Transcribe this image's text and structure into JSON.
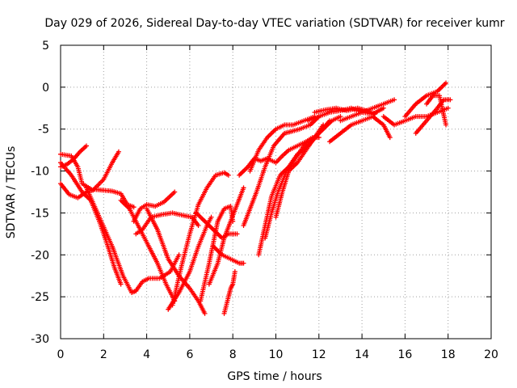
{
  "chart_data": {
    "type": "scatter",
    "title": "Day 029 of 2026, Sidereal Day-to-day VTEC variation (SDTVAR) for receiver kumr",
    "xlabel": "GPS time / hours",
    "ylabel": "SDTVAR / TECUs",
    "xlim": [
      0,
      20
    ],
    "ylim": [
      -30,
      5
    ],
    "xticks": [
      0,
      2,
      4,
      6,
      8,
      10,
      12,
      14,
      16,
      18,
      20
    ],
    "yticks": [
      -30,
      -25,
      -20,
      -15,
      -10,
      -5,
      0,
      5
    ],
    "grid": true,
    "marker": "+",
    "color": "#ff0000",
    "series": [
      {
        "name": "s1",
        "x": [
          0.0,
          0.3,
          0.6,
          0.9,
          1.2
        ],
        "y": [
          -9.5,
          -9.2,
          -8.6,
          -7.7,
          -7.0
        ]
      },
      {
        "name": "s2",
        "x": [
          0.0,
          0.5,
          0.8,
          1.0,
          1.5,
          2.0,
          2.4,
          2.7
        ],
        "y": [
          -8.0,
          -8.2,
          -9.5,
          -11.5,
          -12.3,
          -11.0,
          -9.0,
          -7.7
        ]
      },
      {
        "name": "s3",
        "x": [
          0.0,
          0.5,
          1.0,
          1.4,
          1.8,
          2.2,
          2.5,
          2.8
        ],
        "y": [
          -9.0,
          -10.5,
          -12.5,
          -13.5,
          -16.0,
          -19.0,
          -21.5,
          -23.5
        ]
      },
      {
        "name": "s4",
        "x": [
          0.0,
          0.4,
          0.8,
          1.2,
          1.6,
          2.0,
          2.4,
          2.8,
          3.1,
          3.4
        ],
        "y": [
          -11.5,
          -12.8,
          -13.2,
          -12.5,
          -12.2,
          -12.3,
          -12.4,
          -12.7,
          -14.0,
          -14.3
        ]
      },
      {
        "name": "s5",
        "x": [
          1.2,
          1.8,
          2.4,
          2.9,
          3.3,
          3.5
        ],
        "y": [
          -12.0,
          -15.5,
          -19.0,
          -22.5,
          -24.5,
          -24.3
        ]
      },
      {
        "name": "s6",
        "x": [
          3.5,
          3.8,
          4.1,
          4.6,
          5.1,
          5.5
        ],
        "y": [
          -24.3,
          -23.2,
          -22.8,
          -22.8,
          -22.0,
          -20.0
        ]
      },
      {
        "name": "s7",
        "x": [
          2.8,
          3.2,
          3.6,
          4.0,
          4.5,
          4.9,
          5.3
        ],
        "y": [
          -13.5,
          -14.5,
          -16.5,
          -18.5,
          -21.0,
          -23.5,
          -25.5
        ]
      },
      {
        "name": "s8",
        "x": [
          3.4,
          3.7,
          4.0,
          4.4,
          4.8,
          5.3
        ],
        "y": [
          -16.0,
          -14.5,
          -14.0,
          -14.2,
          -13.7,
          -12.5
        ]
      },
      {
        "name": "s9",
        "x": [
          3.5,
          3.8,
          4.2,
          4.7,
          5.2,
          5.7,
          6.1,
          6.4
        ],
        "y": [
          -17.5,
          -17.0,
          -15.5,
          -15.2,
          -15.0,
          -15.3,
          -15.5,
          -16.5
        ]
      },
      {
        "name": "s10",
        "x": [
          4.0,
          4.5,
          5.0,
          5.5,
          6.0,
          6.4,
          6.7
        ],
        "y": [
          -14.5,
          -17.0,
          -20.5,
          -22.5,
          -24.0,
          -25.5,
          -27.0
        ]
      },
      {
        "name": "s11",
        "x": [
          5.0,
          5.5,
          6.0,
          6.4,
          6.8,
          7.0
        ],
        "y": [
          -26.5,
          -24.5,
          -22.0,
          -19.0,
          -16.5,
          -15.5
        ]
      },
      {
        "name": "s12",
        "x": [
          5.2,
          5.6,
          6.0,
          6.4,
          6.8,
          7.2,
          7.6,
          7.8
        ],
        "y": [
          -26.0,
          -21.5,
          -17.5,
          -14.0,
          -12.0,
          -10.5,
          -10.2,
          -10.5
        ]
      },
      {
        "name": "s13",
        "x": [
          6.3,
          6.7,
          7.1,
          7.5,
          7.8,
          8.2
        ],
        "y": [
          -15.0,
          -16.0,
          -17.0,
          -18.0,
          -17.5,
          -17.5
        ]
      },
      {
        "name": "s14",
        "x": [
          6.5,
          6.9,
          7.3,
          7.6,
          7.9,
          8.0
        ],
        "y": [
          -25.5,
          -21.0,
          -16.0,
          -14.5,
          -14.2,
          -16.0
        ]
      },
      {
        "name": "s15",
        "x": [
          6.9,
          7.3,
          7.6,
          7.9,
          8.2,
          8.5
        ],
        "y": [
          -23.5,
          -21.0,
          -18.0,
          -16.0,
          -14.0,
          -12.0
        ]
      },
      {
        "name": "s16",
        "x": [
          7.1,
          7.5,
          7.9,
          8.3,
          8.5
        ],
        "y": [
          -19.0,
          -20.0,
          -20.5,
          -21.0,
          -21.0
        ]
      },
      {
        "name": "s17",
        "x": [
          7.6,
          7.8,
          7.9,
          8.0,
          8.1
        ],
        "y": [
          -27.0,
          -25.0,
          -24.0,
          -23.5,
          -22.0
        ]
      },
      {
        "name": "s18",
        "x": [
          8.3,
          8.7,
          9.0,
          9.3,
          9.6,
          10.0,
          10.3,
          10.6,
          11.0,
          11.4,
          11.7,
          12.0
        ],
        "y": [
          -10.5,
          -9.5,
          -8.5,
          -8.8,
          -8.5,
          -9.0,
          -8.2,
          -7.5,
          -7.0,
          -6.5,
          -6.0,
          -6.0
        ]
      },
      {
        "name": "s19",
        "x": [
          8.5,
          8.8,
          9.1,
          9.5,
          9.9,
          10.4,
          10.7,
          11.1,
          11.6,
          12.0
        ],
        "y": [
          -16.5,
          -14.5,
          -12.5,
          -9.5,
          -7.0,
          -5.5,
          -5.3,
          -5.0,
          -4.5,
          -3.5
        ]
      },
      {
        "name": "s20",
        "x": [
          8.8,
          9.2,
          9.6,
          10.0,
          10.4,
          10.8,
          11.3,
          11.8
        ],
        "y": [
          -10.0,
          -7.5,
          -6.0,
          -5.0,
          -4.5,
          -4.5,
          -4.0,
          -3.5
        ]
      },
      {
        "name": "s21",
        "x": [
          9.2,
          9.5,
          9.8,
          10.2,
          10.6,
          11.0,
          11.5,
          12.0,
          12.5
        ],
        "y": [
          -20.0,
          -16.5,
          -13.0,
          -10.5,
          -9.5,
          -8.0,
          -7.0,
          -5.5,
          -4.0
        ]
      },
      {
        "name": "s22",
        "x": [
          9.5,
          9.8,
          10.1,
          10.5,
          10.9,
          11.3,
          11.8,
          12.2
        ],
        "y": [
          -18.0,
          -15.0,
          -12.5,
          -10.0,
          -8.5,
          -7.0,
          -6.0,
          -4.5
        ]
      },
      {
        "name": "s23",
        "x": [
          10.0,
          10.3,
          10.6,
          11.0,
          11.4,
          11.8,
          12.2,
          12.6,
          13.0
        ],
        "y": [
          -15.5,
          -12.5,
          -10.0,
          -9.0,
          -7.5,
          -6.0,
          -5.0,
          -4.0,
          -3.5
        ]
      },
      {
        "name": "s24",
        "x": [
          11.5,
          12.0,
          12.5,
          13.0,
          13.5,
          14.0,
          14.5,
          15.0
        ],
        "y": [
          -4.0,
          -3.5,
          -3.0,
          -2.8,
          -2.5,
          -3.0,
          -3.2,
          -2.5
        ]
      },
      {
        "name": "s25",
        "x": [
          11.8,
          12.3,
          12.8,
          13.3,
          13.8,
          14.2,
          14.6
        ],
        "y": [
          -3.0,
          -2.7,
          -2.5,
          -2.8,
          -2.5,
          -2.8,
          -3.2
        ]
      },
      {
        "name": "s26",
        "x": [
          12.5,
          13.0,
          13.5,
          14.0,
          14.5,
          15.0,
          15.3
        ],
        "y": [
          -6.5,
          -5.5,
          -4.5,
          -4.0,
          -3.5,
          -4.5,
          -6.0
        ]
      },
      {
        "name": "s27",
        "x": [
          13.0,
          13.5,
          14.0,
          14.5,
          15.0,
          15.5
        ],
        "y": [
          -4.0,
          -3.5,
          -3.0,
          -2.5,
          -2.0,
          -1.5
        ]
      },
      {
        "name": "s28",
        "x": [
          15.0,
          15.5,
          16.0,
          16.5,
          17.0,
          17.5,
          18.0
        ],
        "y": [
          -3.5,
          -4.5,
          -4.0,
          -3.5,
          -3.5,
          -3.0,
          -2.5
        ]
      },
      {
        "name": "s29",
        "x": [
          16.0,
          16.5,
          17.0,
          17.5,
          17.9
        ],
        "y": [
          -3.5,
          -2.0,
          -1.0,
          -0.5,
          0.5
        ]
      },
      {
        "name": "s30",
        "x": [
          16.5,
          17.0,
          17.5,
          17.8,
          18.1
        ],
        "y": [
          -5.5,
          -4.0,
          -2.5,
          -1.5,
          -1.5
        ]
      },
      {
        "name": "s31",
        "x": [
          17.0,
          17.3,
          17.6,
          17.9
        ],
        "y": [
          -2.0,
          -1.0,
          -1.0,
          -4.5
        ]
      }
    ]
  }
}
